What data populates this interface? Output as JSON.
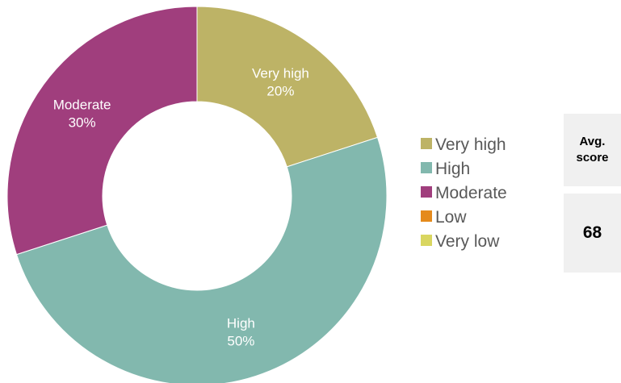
{
  "chart_data": {
    "type": "donut",
    "categories": [
      "Very high",
      "High",
      "Moderate",
      "Low",
      "Very low"
    ],
    "values": [
      20,
      50,
      30,
      0,
      0
    ],
    "value_unit": "%",
    "colors": [
      "#bdb366",
      "#82b8ae",
      "#a03e7d",
      "#e58a1c",
      "#d9d660"
    ],
    "slice_labels": [
      {
        "name": "Very high",
        "value": "20%"
      },
      {
        "name": "High",
        "value": "50%"
      },
      {
        "name": "Moderate",
        "value": "30%"
      }
    ],
    "legend": {
      "placement": "right",
      "items": [
        "Very high",
        "High",
        "Moderate",
        "Low",
        "Very low"
      ]
    }
  },
  "score": {
    "header": "Avg. score",
    "value": "68"
  }
}
